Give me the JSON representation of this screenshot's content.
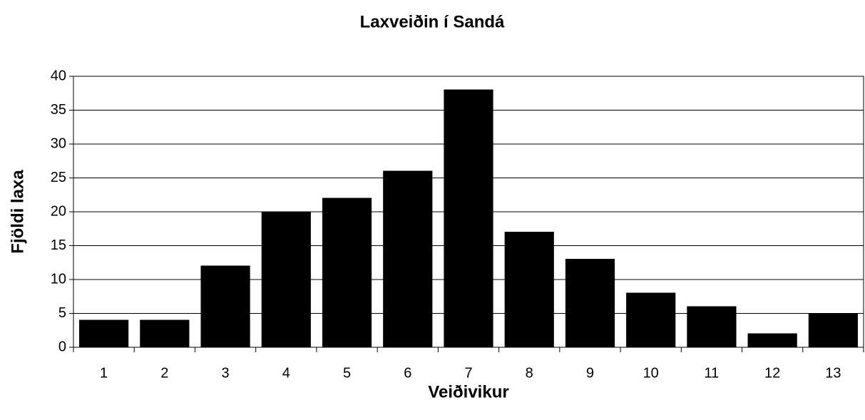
{
  "chart_data": {
    "type": "bar",
    "title": "Laxveiðin í Sandá",
    "x_label": "Veiðivikur",
    "y_label": "Fjöldi laxa",
    "categories": [
      "1",
      "2",
      "3",
      "4",
      "5",
      "6",
      "7",
      "8",
      "9",
      "10",
      "11",
      "12",
      "13"
    ],
    "values": [
      4,
      4,
      12,
      20,
      22,
      26,
      38,
      17,
      13,
      8,
      6,
      2,
      5
    ],
    "color": "#000000",
    "ylim": [
      0,
      40
    ],
    "yticks": [
      0,
      5,
      10,
      15,
      20,
      25,
      30,
      35,
      40
    ],
    "grid": true
  }
}
